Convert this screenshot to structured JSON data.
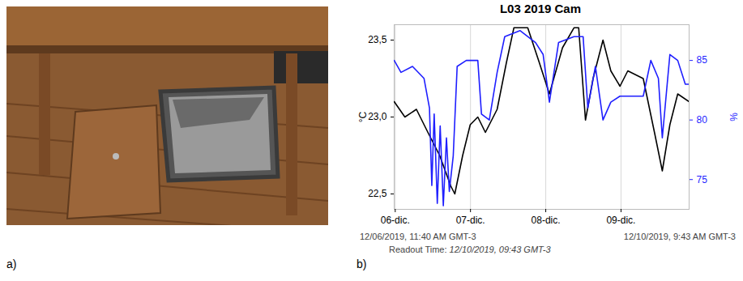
{
  "panel_labels": [
    "a)",
    "b)"
  ],
  "chart_data": {
    "type": "line",
    "title": "L03 2019 Cam",
    "ylabel": "°C",
    "y2label": "%",
    "xlim": [
      "2019-12-06T11:40",
      "2019-12-10T09:43"
    ],
    "xticks": [
      {
        "value": "2019-12-06T12:00",
        "label": "06-dic."
      },
      {
        "value": "2019-12-07T12:00",
        "label": "07-dic."
      },
      {
        "value": "2019-12-08T12:00",
        "label": "08-dic."
      },
      {
        "value": "2019-12-09T12:00",
        "label": "09-dic."
      }
    ],
    "ylim": [
      22.4,
      23.6
    ],
    "yticks": [
      {
        "value": 22.5,
        "label": "22,5"
      },
      {
        "value": 23.0,
        "label": "23,0"
      },
      {
        "value": 23.5,
        "label": "23,5"
      }
    ],
    "y2lim": [
      72.5,
      88
    ],
    "y2ticks": [
      75,
      80,
      85
    ],
    "grid": true,
    "series": [
      {
        "color": "#000000",
        "x": [
          "2019-12-06T11:40",
          "2019-12-06T15:05",
          "2019-12-06T18:45",
          "2019-12-06T22:25",
          "2019-12-07T02:10",
          "2019-12-07T05:45",
          "2019-12-07T07:00",
          "2019-12-07T09:30",
          "2019-12-07T11:55",
          "2019-12-07T14:20",
          "2019-12-07T16:45",
          "2019-12-07T20:30",
          "2019-12-07T23:25",
          "2019-12-08T01:50",
          "2019-12-08T06:15",
          "2019-12-08T10:00",
          "2019-12-08T13:10",
          "2019-12-08T17:20",
          "2019-12-08T21:00",
          "2019-12-08T22:30",
          "2019-12-09T00:40",
          "2019-12-09T03:05",
          "2019-12-09T06:15",
          "2019-12-09T08:45",
          "2019-12-09T11:40",
          "2019-12-09T14:10",
          "2019-12-09T19:05",
          "2019-12-09T22:40",
          "2019-12-10T01:10",
          "2019-12-10T03:35",
          "2019-12-10T06:05",
          "2019-12-10T09:43"
        ],
        "values": [
          23.1,
          23.0,
          23.05,
          22.9,
          22.75,
          22.55,
          22.5,
          22.75,
          22.95,
          23.0,
          22.9,
          23.05,
          23.35,
          23.58,
          23.58,
          23.35,
          23.15,
          23.45,
          23.58,
          23.58,
          22.98,
          23.25,
          23.5,
          23.3,
          23.2,
          23.3,
          23.25,
          22.9,
          22.65,
          22.95,
          23.15,
          23.1
        ]
      },
      {
        "color": "#1f1fff",
        "axis": "y2",
        "x": [
          "2019-12-06T11:40",
          "2019-12-06T13:50",
          "2019-12-06T17:30",
          "2019-12-06T21:10",
          "2019-12-06T22:55",
          "2019-12-06T23:40",
          "2019-12-07T00:25",
          "2019-12-07T01:25",
          "2019-12-07T02:20",
          "2019-12-07T03:20",
          "2019-12-07T04:20",
          "2019-12-07T05:15",
          "2019-12-07T06:30",
          "2019-12-07T07:45",
          "2019-12-07T10:40",
          "2019-12-07T14:20",
          "2019-12-07T15:30",
          "2019-12-07T18:00",
          "2019-12-07T20:30",
          "2019-12-07T22:55",
          "2019-12-08T03:50",
          "2019-12-08T08:45",
          "2019-12-08T11:10",
          "2019-12-08T13:10",
          "2019-12-08T16:05",
          "2019-12-08T21:00",
          "2019-12-08T23:55",
          "2019-12-09T01:25",
          "2019-12-09T03:50",
          "2019-12-09T06:15",
          "2019-12-09T08:45",
          "2019-12-09T11:40",
          "2019-12-09T19:05",
          "2019-12-09T21:30",
          "2019-12-09T23:55",
          "2019-12-10T01:10",
          "2019-12-10T03:35",
          "2019-12-10T06:05",
          "2019-12-10T08:30",
          "2019-12-10T09:43"
        ],
        "values": [
          85.0,
          84.0,
          84.5,
          83.5,
          81.0,
          74.5,
          80.5,
          73.0,
          79.5,
          72.8,
          78.5,
          74.0,
          77.0,
          84.5,
          85.0,
          85.0,
          80.5,
          80.0,
          84.0,
          87.0,
          87.5,
          86.5,
          85.5,
          81.5,
          86.5,
          87.0,
          87.0,
          81.0,
          84.5,
          80.0,
          81.5,
          82.0,
          82.0,
          85.0,
          83.5,
          78.5,
          85.5,
          85.0,
          83.0,
          83.0
        ]
      }
    ],
    "footer": {
      "start": "12/06/2019, 11:40 AM GMT-3",
      "end": "12/10/2019, 9:43 AM GMT-3",
      "readout_label": "Readout Time:",
      "readout_time": "12/10/2019, 09:43 GMT-3"
    }
  }
}
